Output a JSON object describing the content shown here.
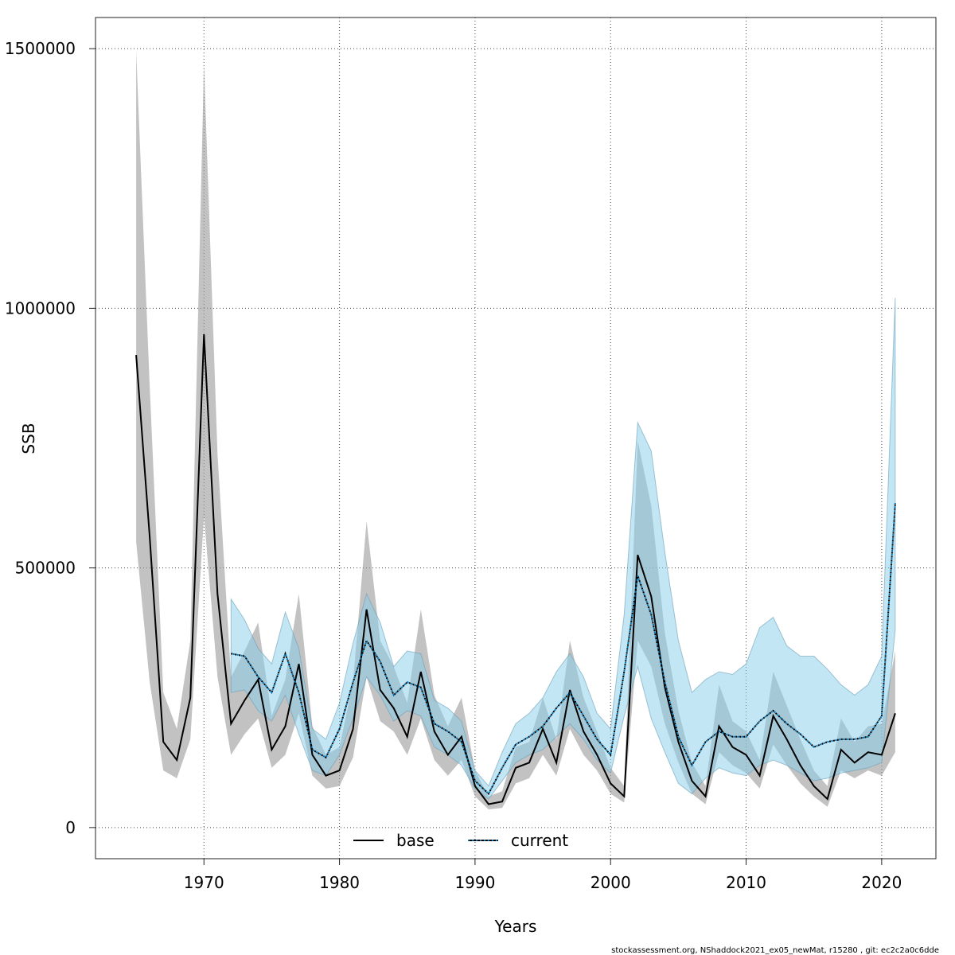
{
  "chart_data": {
    "type": "line",
    "title": "",
    "xlabel": "Years",
    "ylabel": "SSB",
    "xlim": [
      1962,
      2024
    ],
    "ylim": [
      -60000,
      1560000
    ],
    "xticks": [
      1970,
      1980,
      1990,
      2000,
      2010,
      2020
    ],
    "yticks": [
      0,
      500000,
      1000000,
      1500000
    ],
    "ytick_labels": [
      "0",
      "500000",
      "1000000",
      "1500000"
    ],
    "grid": true,
    "legend_position": "bottom-center",
    "legend": [
      "base",
      "current"
    ],
    "footnote": "stockassessment.org, NShaddock2021_ex05_newMat, r15280 , git: ec2c2a0c6dde",
    "colors": {
      "base_line": "#000000",
      "base_band": "#999999",
      "current_line": "#000000",
      "current_dots": "#0072b2",
      "current_band": "#87ceeb",
      "grid": "#444444"
    },
    "series": [
      {
        "name": "base",
        "x": [
          1965,
          1966,
          1967,
          1968,
          1969,
          1970,
          1971,
          1972,
          1973,
          1974,
          1975,
          1976,
          1977,
          1978,
          1979,
          1980,
          1981,
          1982,
          1983,
          1984,
          1985,
          1986,
          1987,
          1988,
          1989,
          1990,
          1991,
          1992,
          1993,
          1994,
          1995,
          1996,
          1997,
          1998,
          1999,
          2000,
          2001,
          2002,
          2003,
          2004,
          2005,
          2006,
          2007,
          2008,
          2009,
          2010,
          2011,
          2012,
          2013,
          2014,
          2015,
          2016,
          2017,
          2018,
          2019,
          2020,
          2021
        ],
        "y": [
          910000,
          560000,
          165000,
          130000,
          250000,
          950000,
          450000,
          200000,
          245000,
          285000,
          150000,
          195000,
          315000,
          140000,
          100000,
          110000,
          190000,
          420000,
          265000,
          230000,
          175000,
          300000,
          185000,
          140000,
          175000,
          80000,
          45000,
          50000,
          115000,
          125000,
          190000,
          125000,
          265000,
          185000,
          140000,
          85000,
          60000,
          525000,
          445000,
          270000,
          165000,
          90000,
          60000,
          195000,
          155000,
          140000,
          100000,
          215000,
          170000,
          120000,
          80000,
          55000,
          150000,
          125000,
          145000,
          140000,
          220000
        ],
        "lower": [
          550000,
          280000,
          110000,
          95000,
          170000,
          600000,
          290000,
          140000,
          180000,
          210000,
          115000,
          140000,
          220000,
          100000,
          75000,
          80000,
          135000,
          290000,
          205000,
          185000,
          140000,
          210000,
          130000,
          100000,
          130000,
          60000,
          35000,
          38000,
          85000,
          95000,
          140000,
          100000,
          190000,
          140000,
          110000,
          65000,
          48000,
          360000,
          310000,
          200000,
          125000,
          65000,
          45000,
          145000,
          120000,
          105000,
          75000,
          160000,
          120000,
          85000,
          60000,
          40000,
          110000,
          95000,
          110000,
          100000,
          145000
        ],
        "upper": [
          1495000,
          850000,
          260000,
          190000,
          360000,
          1470000,
          720000,
          290000,
          340000,
          395000,
          215000,
          285000,
          450000,
          195000,
          140000,
          155000,
          280000,
          590000,
          360000,
          310000,
          240000,
          420000,
          255000,
          195000,
          250000,
          110000,
          60000,
          70000,
          155000,
          165000,
          250000,
          170000,
          360000,
          250000,
          185000,
          115000,
          80000,
          745000,
          620000,
          375000,
          225000,
          125000,
          80000,
          275000,
          205000,
          185000,
          130000,
          300000,
          235000,
          170000,
          110000,
          80000,
          210000,
          165000,
          195000,
          200000,
          340000
        ]
      },
      {
        "name": "current",
        "x": [
          1972,
          1973,
          1974,
          1975,
          1976,
          1977,
          1978,
          1979,
          1980,
          1981,
          1982,
          1983,
          1984,
          1985,
          1986,
          1987,
          1988,
          1989,
          1990,
          1991,
          1992,
          1993,
          1994,
          1995,
          1996,
          1997,
          1998,
          1999,
          2000,
          2001,
          2002,
          2003,
          2004,
          2005,
          2006,
          2007,
          2008,
          2009,
          2010,
          2011,
          2012,
          2013,
          2014,
          2015,
          2016,
          2017,
          2018,
          2019,
          2020,
          2021
        ],
        "y": [
          335000,
          330000,
          290000,
          260000,
          335000,
          260000,
          150000,
          135000,
          190000,
          280000,
          360000,
          320000,
          255000,
          280000,
          270000,
          200000,
          185000,
          165000,
          90000,
          65000,
          115000,
          160000,
          175000,
          195000,
          230000,
          260000,
          215000,
          170000,
          140000,
          300000,
          485000,
          410000,
          280000,
          175000,
          120000,
          165000,
          185000,
          175000,
          175000,
          205000,
          225000,
          200000,
          180000,
          155000,
          165000,
          170000,
          170000,
          175000,
          215000,
          625000
        ],
        "lower": [
          260000,
          265000,
          225000,
          205000,
          255000,
          180000,
          110000,
          100000,
          140000,
          210000,
          290000,
          255000,
          205000,
          225000,
          215000,
          155000,
          140000,
          120000,
          75000,
          55000,
          90000,
          125000,
          140000,
          150000,
          175000,
          200000,
          170000,
          130000,
          105000,
          215000,
          310000,
          210000,
          145000,
          85000,
          65000,
          95000,
          115000,
          105000,
          100000,
          120000,
          130000,
          120000,
          105000,
          90000,
          95000,
          105000,
          110000,
          115000,
          125000,
          380000
        ],
        "upper": [
          440000,
          400000,
          345000,
          315000,
          415000,
          345000,
          190000,
          170000,
          240000,
          355000,
          450000,
          395000,
          310000,
          340000,
          335000,
          245000,
          230000,
          205000,
          110000,
          80000,
          145000,
          200000,
          220000,
          250000,
          300000,
          335000,
          290000,
          220000,
          190000,
          410000,
          780000,
          725000,
          530000,
          360000,
          260000,
          285000,
          300000,
          295000,
          315000,
          385000,
          405000,
          350000,
          330000,
          330000,
          305000,
          275000,
          255000,
          275000,
          330000,
          1020000
        ]
      }
    ]
  }
}
